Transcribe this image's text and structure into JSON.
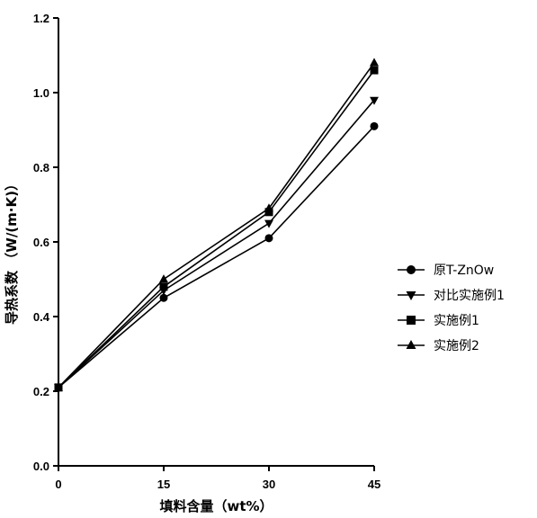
{
  "chart_data": {
    "type": "line",
    "xlabel": "填料含量（wt%）",
    "ylabel": "导热系数 （W/(m·K)）",
    "x": [
      0,
      15,
      30,
      45
    ],
    "xlim": [
      0,
      45
    ],
    "ylim": [
      0.0,
      1.2
    ],
    "xticks": [
      "0",
      "15",
      "30",
      "45"
    ],
    "yticks": [
      "0.0",
      "0.2",
      "0.4",
      "0.6",
      "0.8",
      "1.0",
      "1.2"
    ],
    "grid": false,
    "legend_position": "right",
    "series": [
      {
        "name": "原T-ZnOw",
        "marker": "circle",
        "values": [
          0.21,
          0.45,
          0.61,
          0.91
        ]
      },
      {
        "name": "对比实施例1",
        "marker": "triangle-down",
        "values": [
          0.21,
          0.47,
          0.65,
          0.98
        ]
      },
      {
        "name": "实施例1",
        "marker": "square",
        "values": [
          0.21,
          0.48,
          0.68,
          1.06
        ]
      },
      {
        "name": "实施例2",
        "marker": "triangle-up",
        "values": [
          0.21,
          0.5,
          0.69,
          1.08
        ]
      }
    ]
  }
}
